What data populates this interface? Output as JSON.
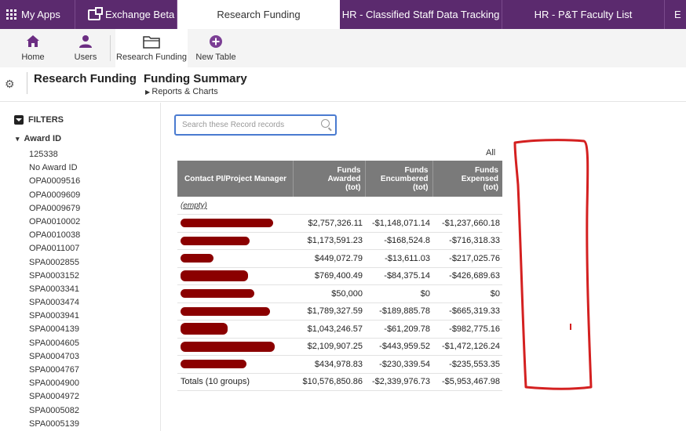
{
  "app_tabs": [
    {
      "label": "My Apps",
      "active": false
    },
    {
      "label": "Exchange Beta",
      "active": false
    },
    {
      "label": "Research Funding",
      "active": true
    },
    {
      "label": "HR - Classified Staff Data Tracking",
      "active": false
    },
    {
      "label": "HR - P&T Faculty List",
      "active": false
    },
    {
      "label": "E",
      "active": false
    }
  ],
  "toolbar": {
    "home": "Home",
    "users": "Users",
    "research_funding": "Research Funding",
    "new_table": "New Table"
  },
  "header": {
    "app_title": "Research Funding",
    "page_title": "Funding Summary",
    "sub_link": "Reports & Charts"
  },
  "sidebar": {
    "filters_label": "FILTERS",
    "group_label": "Award ID",
    "items": [
      "125338",
      "No Award ID",
      "OPA0009516",
      "OPA0009609",
      "OPA0009679",
      "OPA0010002",
      "OPA0010038",
      "OPA0011007",
      "SPA0002855",
      "SPA0003152",
      "SPA0003341",
      "SPA0003474",
      "SPA0003941",
      "SPA0004139",
      "SPA0004605",
      "SPA0004703",
      "SPA0004767",
      "SPA0004900",
      "SPA0004972",
      "SPA0005082",
      "SPA0005139"
    ]
  },
  "search": {
    "placeholder": "Search these Record records",
    "value": ""
  },
  "all_label": "All",
  "table": {
    "headers": {
      "name": "Contact PI/Project Manager",
      "awarded": [
        "Funds",
        "Awarded",
        "(tot)"
      ],
      "encumbered": [
        "Funds",
        "Encumbered",
        "(tot)"
      ],
      "expensed": [
        "Funds",
        "Expensed",
        "(tot)"
      ]
    },
    "empty_label": "(empty)",
    "rows": [
      {
        "awarded": "$2,757,326.11",
        "encumbered": "-$1,148,071.14",
        "expensed": "-$1,237,660.18"
      },
      {
        "awarded": "$1,173,591.23",
        "encumbered": "-$168,524.8",
        "expensed": "-$716,318.33"
      },
      {
        "awarded": "$449,072.79",
        "encumbered": "-$13,611.03",
        "expensed": "-$217,025.76"
      },
      {
        "awarded": "$769,400.49",
        "encumbered": "-$84,375.14",
        "expensed": "-$426,689.63"
      },
      {
        "awarded": "$50,000",
        "encumbered": "$0",
        "expensed": "$0"
      },
      {
        "awarded": "$1,789,327.59",
        "encumbered": "-$189,885.78",
        "expensed": "-$665,319.33"
      },
      {
        "awarded": "$1,043,246.57",
        "encumbered": "-$61,209.78",
        "expensed": "-$982,775.16"
      },
      {
        "awarded": "$2,109,907.25",
        "encumbered": "-$443,959.52",
        "expensed": "-$1,472,126.24"
      },
      {
        "awarded": "$434,978.83",
        "encumbered": "-$230,339.54",
        "expensed": "-$235,553.35"
      }
    ],
    "totals": {
      "label": "Totals (10 groups)",
      "awarded": "$10,576,850.86",
      "encumbered": "-$2,339,976.73",
      "expensed": "-$5,953,467.98"
    }
  },
  "colors": {
    "brand": "#5b2a6e",
    "accent": "#4a7bd0",
    "header_gray": "#7a7a7a",
    "redaction": "#8b0000",
    "annotation": "#d42020"
  }
}
